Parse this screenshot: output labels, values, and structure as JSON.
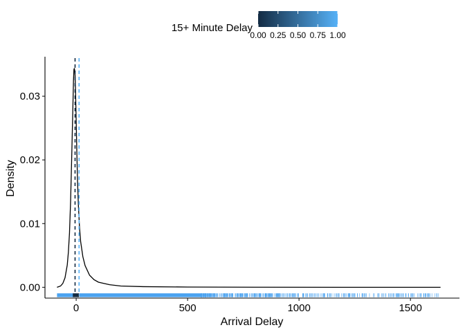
{
  "chart_data": {
    "type": "density",
    "xlabel": "Arrival Delay",
    "ylabel": "Density",
    "xlim": [
      -140,
      1720
    ],
    "ylim": [
      -0.0017,
      0.0362
    ],
    "x_ticks": [
      0,
      500,
      1000,
      1500
    ],
    "x_tick_labels": [
      "0",
      "500",
      "1000",
      "1500"
    ],
    "y_ticks": [
      0.0,
      0.01,
      0.02,
      0.03
    ],
    "y_tick_labels": [
      "0.00",
      "0.01",
      "0.02",
      "0.03"
    ],
    "density_curve": {
      "x": [
        -86,
        -70,
        -60,
        -50,
        -40,
        -35,
        -30,
        -25,
        -20,
        -15,
        -12,
        -10,
        -8,
        -5,
        -3,
        0,
        3,
        6,
        10,
        15,
        20,
        30,
        40,
        60,
        80,
        100,
        150,
        200,
        300,
        500,
        800,
        1200,
        1635
      ],
      "y": [
        0.0,
        0.0002,
        0.0006,
        0.0015,
        0.0035,
        0.0055,
        0.0085,
        0.0135,
        0.0205,
        0.028,
        0.0325,
        0.0342,
        0.0344,
        0.0333,
        0.031,
        0.0262,
        0.0212,
        0.0168,
        0.0128,
        0.0094,
        0.0072,
        0.0048,
        0.0034,
        0.0019,
        0.0012,
        0.0008,
        0.0004,
        0.0002,
        0.0001,
        4e-05,
        1e-05,
        0.0,
        0.0
      ]
    },
    "vlines": [
      {
        "x": -5,
        "fill_value": 0.0,
        "linetype": "dashed"
      },
      {
        "x": 13,
        "fill_value": 1.0,
        "linetype": "dashed"
      }
    ],
    "rug": {
      "range": [
        -86,
        1635
      ],
      "value_below_15": "dark",
      "value_15_or_more": "light"
    },
    "legend": {
      "title": "15+ Minute Delay",
      "position": "top",
      "type": "colorbar",
      "low_color": "#132B43",
      "high_color": "#56B1F7",
      "ticks": [
        0.0,
        0.25,
        0.5,
        0.75,
        1.0
      ],
      "tick_labels": [
        "0.00",
        "0.25",
        "0.50",
        "0.75",
        "1.00"
      ]
    },
    "grid": false,
    "colors": {
      "curve": "#000000",
      "dark": "#132B43",
      "light": "#56B1F7",
      "rug_light": "#4BA3F0"
    }
  }
}
